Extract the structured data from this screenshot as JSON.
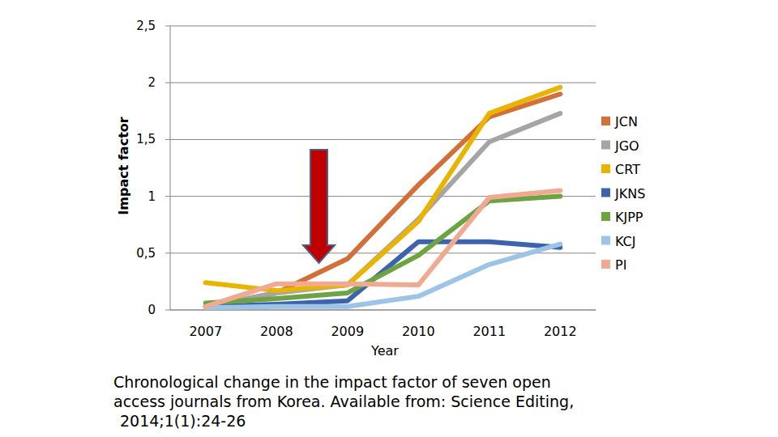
{
  "chart_data": {
    "type": "line",
    "y_label": "Impact factor",
    "x_label": "Year",
    "categories": [
      "2007",
      "2008",
      "2009",
      "2010",
      "2011",
      "2012"
    ],
    "series": [
      {
        "name": "JCN",
        "color": "#d2703a",
        "values": [
          0.03,
          0.15,
          0.45,
          1.1,
          1.7,
          1.9
        ]
      },
      {
        "name": "JGO",
        "color": "#a5a5a5",
        "values": [
          0.03,
          0.15,
          0.22,
          0.8,
          1.48,
          1.73
        ]
      },
      {
        "name": "CRT",
        "color": "#e8b400",
        "values": [
          0.24,
          0.17,
          0.22,
          0.78,
          1.73,
          1.96
        ]
      },
      {
        "name": "JKNS",
        "color": "#3d63ad",
        "values": [
          0.03,
          0.05,
          0.08,
          0.6,
          0.6,
          0.55
        ]
      },
      {
        "name": "KJPP",
        "color": "#6ea343",
        "values": [
          0.06,
          0.1,
          0.15,
          0.48,
          0.96,
          1.0
        ]
      },
      {
        "name": "KCJ",
        "color": "#9dc3e6",
        "values": [
          0.02,
          0.03,
          0.03,
          0.12,
          0.4,
          0.58
        ]
      },
      {
        "name": "PI",
        "color": "#f1aa92",
        "values": [
          0.03,
          0.23,
          0.23,
          0.22,
          0.99,
          1.05
        ]
      }
    ],
    "ylim": [
      0,
      2.5
    ],
    "yticks": [
      0,
      {
        "value": 0.5,
        "label": "0,5"
      },
      1,
      {
        "value": 1.5,
        "label": "1,5"
      },
      2,
      {
        "value": 2.5,
        "label": "2,5"
      }
    ],
    "grid": true,
    "legend": "right",
    "caption": [
      "Chronological change in the impact factor of seven open",
      "access journals from Korea. Available from: Science Editing,",
      "2014;1(1):24-26"
    ]
  }
}
